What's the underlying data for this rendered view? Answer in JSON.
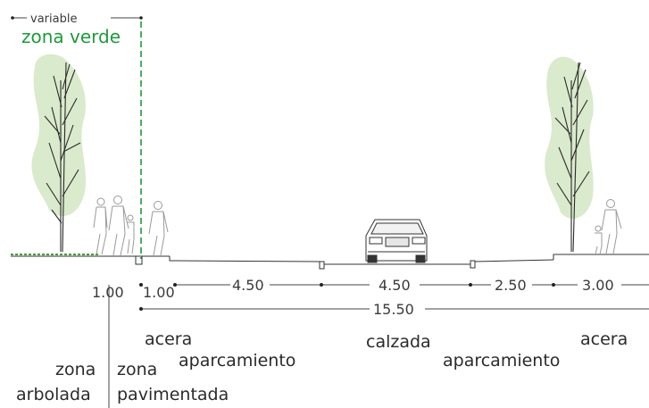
{
  "header": {
    "variable_label": "variable",
    "green_zone_label": "zona verde"
  },
  "dimensions": {
    "d1": "1.00",
    "d2": "1.00",
    "d3": "4.50",
    "d4": "4.50",
    "d5": "2.50",
    "d6": "3.00",
    "total": "15.50"
  },
  "labels": {
    "acera_left": "acera",
    "aparcamiento_left": "aparcamiento",
    "zona_left": "zona",
    "arbolada": "arbolada",
    "zona_right": "zona",
    "pavimentada": "pavimentada",
    "calzada": "calzada",
    "aparcamiento_right": "aparcamiento",
    "acera_right": "acera"
  },
  "colors": {
    "green_accent": "#1e9a3a",
    "foliage": "#cfe3bf",
    "line": "#333333"
  }
}
